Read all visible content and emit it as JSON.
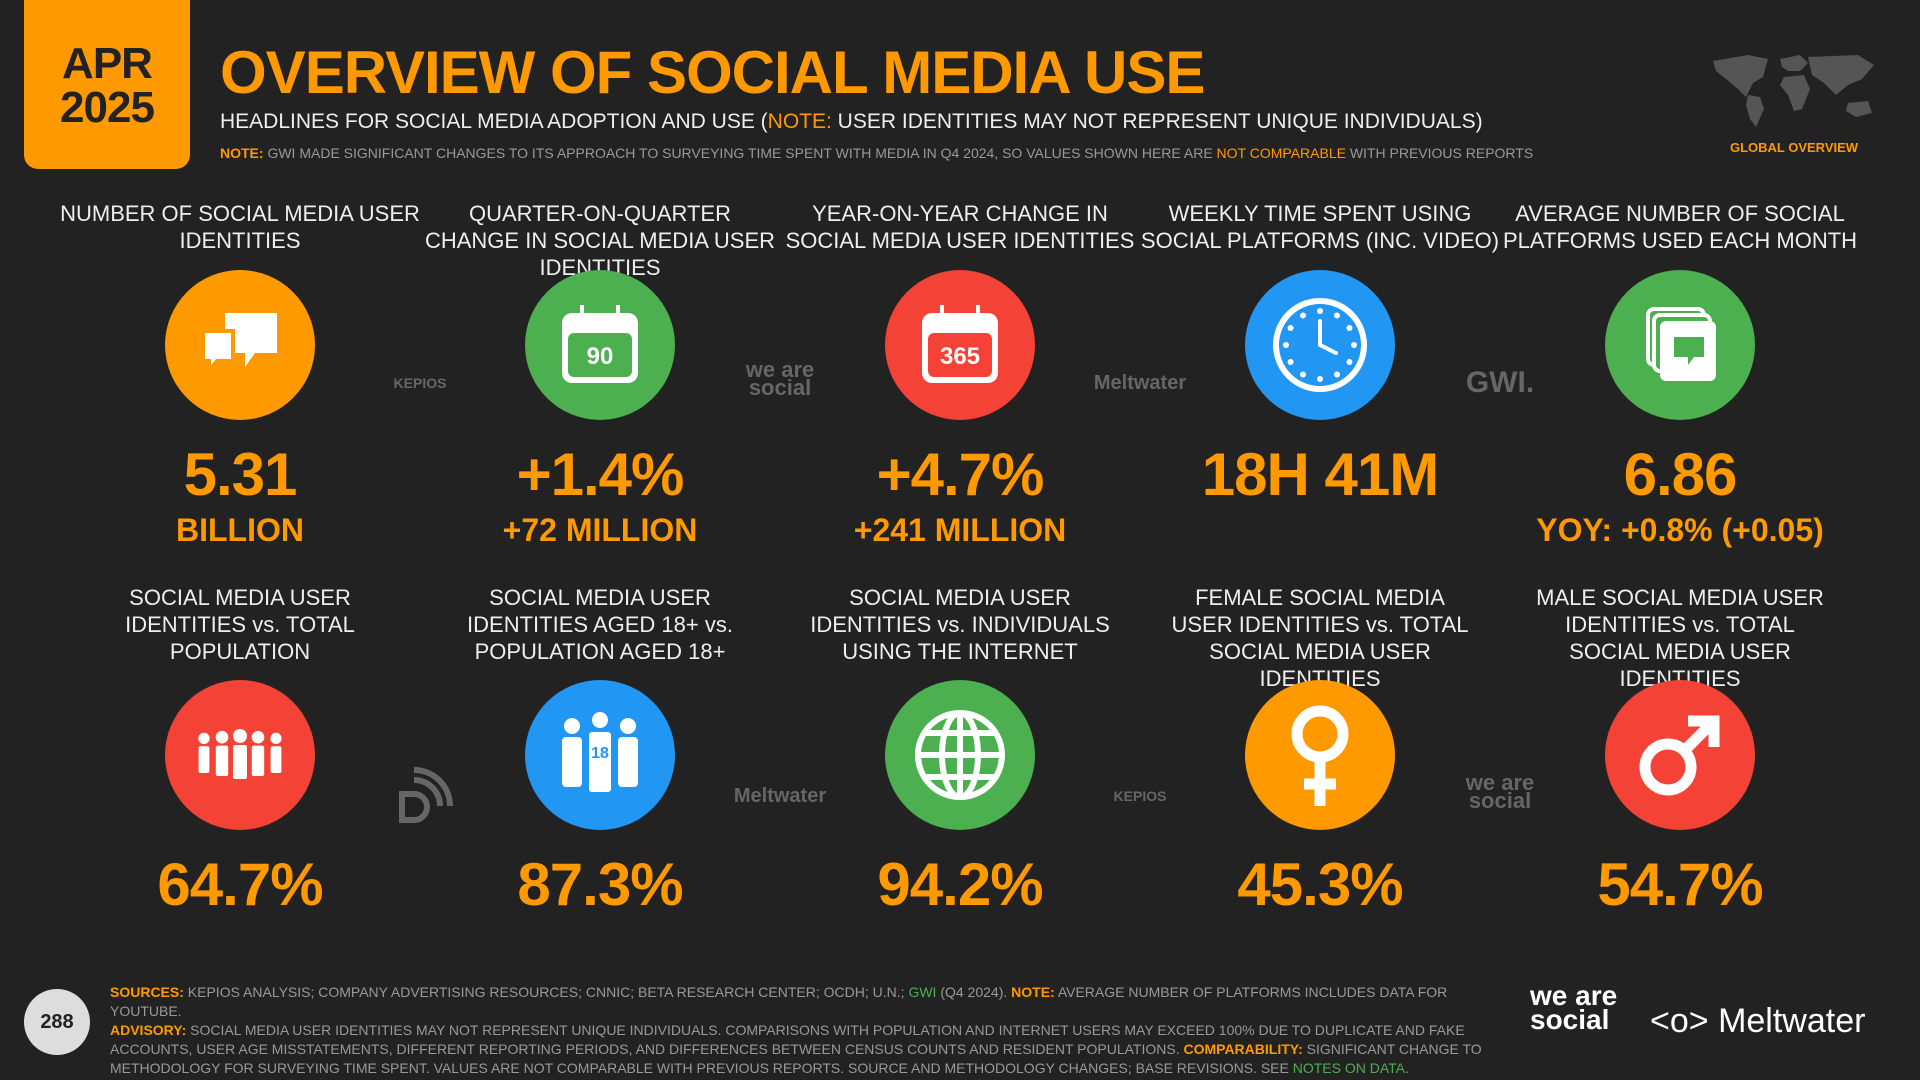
{
  "header": {
    "month": "APR",
    "year": "2025",
    "title": "OVERVIEW OF SOCIAL MEDIA USE",
    "subtitle_pre": "HEADLINES FOR SOCIAL MEDIA ADOPTION AND USE (",
    "subtitle_note": "NOTE:",
    "subtitle_post": " USER IDENTITIES MAY NOT REPRESENT UNIQUE INDIVIDUALS)",
    "note_label": "NOTE:",
    "note_pre": " GWI MADE SIGNIFICANT CHANGES TO ITS APPROACH TO SURVEYING TIME SPENT WITH MEDIA IN Q4 2024, SO VALUES SHOWN HERE ARE ",
    "note_highlight": "NOT COMPARABLE",
    "note_post": " WITH PREVIOUS REPORTS",
    "region_label": "GLOBAL OVERVIEW"
  },
  "row1": [
    {
      "label": "NUMBER OF SOCIAL MEDIA USER IDENTITIES",
      "value": "5.31",
      "sub": "BILLION",
      "icon": "speech-bubbles-icon",
      "color": "#FF9900"
    },
    {
      "label": "QUARTER-ON-QUARTER CHANGE IN SOCIAL MEDIA USER IDENTITIES",
      "value": "+1.4%",
      "sub": "+72 MILLION",
      "icon": "calendar-90-icon",
      "icon_text": "90",
      "color": "#4CAF50"
    },
    {
      "label": "YEAR-ON-YEAR CHANGE IN SOCIAL MEDIA USER IDENTITIES",
      "value": "+4.7%",
      "sub": "+241 MILLION",
      "icon": "calendar-365-icon",
      "icon_text": "365",
      "color": "#F44336"
    },
    {
      "label": "WEEKLY TIME SPENT USING SOCIAL PLATFORMS (INC. VIDEO)",
      "value": "18H 41M",
      "sub": "",
      "icon": "clock-icon",
      "color": "#2196F3"
    },
    {
      "label": "AVERAGE NUMBER OF SOCIAL PLATFORMS USED EACH MONTH",
      "value": "6.86",
      "sub": "YOY: +0.8% (+0.05)",
      "icon": "stacked-windows-icon",
      "color": "#4CAF50"
    }
  ],
  "row2": [
    {
      "label": "SOCIAL MEDIA USER IDENTITIES vs. TOTAL POPULATION",
      "value": "64.7%",
      "icon": "crowd-icon",
      "color": "#F44336"
    },
    {
      "label": "SOCIAL MEDIA USER IDENTITIES AGED 18+ vs. POPULATION AGED 18+",
      "value": "87.3%",
      "icon": "adults-18-icon",
      "icon_text": "18",
      "color": "#2196F3"
    },
    {
      "label": "SOCIAL MEDIA USER IDENTITIES vs. INDIVIDUALS USING THE INTERNET",
      "value": "94.2%",
      "icon": "globe-icon",
      "color": "#4CAF50"
    },
    {
      "label": "FEMALE SOCIAL MEDIA USER IDENTITIES vs. TOTAL SOCIAL MEDIA USER IDENTITIES",
      "value": "45.3%",
      "icon": "female-icon",
      "color": "#FF9900"
    },
    {
      "label": "MALE SOCIAL MEDIA USER IDENTITIES vs. TOTAL SOCIAL MEDIA USER IDENTITIES",
      "value": "54.7%",
      "icon": "male-icon",
      "color": "#F44336"
    }
  ],
  "logos": {
    "kepios": "KEPIOS",
    "was": "we are social",
    "meltwater": "Meltwater",
    "gwi": "GWI."
  },
  "footer": {
    "page": "288",
    "sources_label": "SOURCES:",
    "sources": " KEPIOS ANALYSIS; COMPANY ADVERTISING RESOURCES; CNNIC; BETA RESEARCH CENTER; OCDH; U.N.; ",
    "gwi": "GWI",
    "sources_post": " (Q4 2024). ",
    "note_label": "NOTE:",
    "note": " AVERAGE NUMBER OF PLATFORMS INCLUDES DATA FOR YOUTUBE.",
    "advisory_label": "ADVISORY:",
    "advisory": " SOCIAL MEDIA USER IDENTITIES MAY NOT REPRESENT UNIQUE INDIVIDUALS. COMPARISONS WITH POPULATION AND INTERNET USERS MAY EXCEED 100% DUE TO DUPLICATE AND FAKE ACCOUNTS, USER AGE MISSTATEMENTS, DIFFERENT REPORTING PERIODS, AND DIFFERENCES BETWEEN CENSUS COUNTS AND RESIDENT POPULATIONS. ",
    "comparability_label": "COMPARABILITY:",
    "comparability": " SIGNIFICANT CHANGE TO METHODOLOGY FOR SURVEYING TIME SPENT. VALUES ARE NOT COMPARABLE WITH PREVIOUS REPORTS. SOURCE AND METHODOLOGY CHANGES; BASE REVISIONS. SEE ",
    "notes_link": "NOTES ON DATA",
    "end": "."
  },
  "colors": {
    "background": "#222222",
    "accent": "#FF9900",
    "green": "#4CAF50",
    "red": "#F44336",
    "blue": "#2196F3"
  }
}
